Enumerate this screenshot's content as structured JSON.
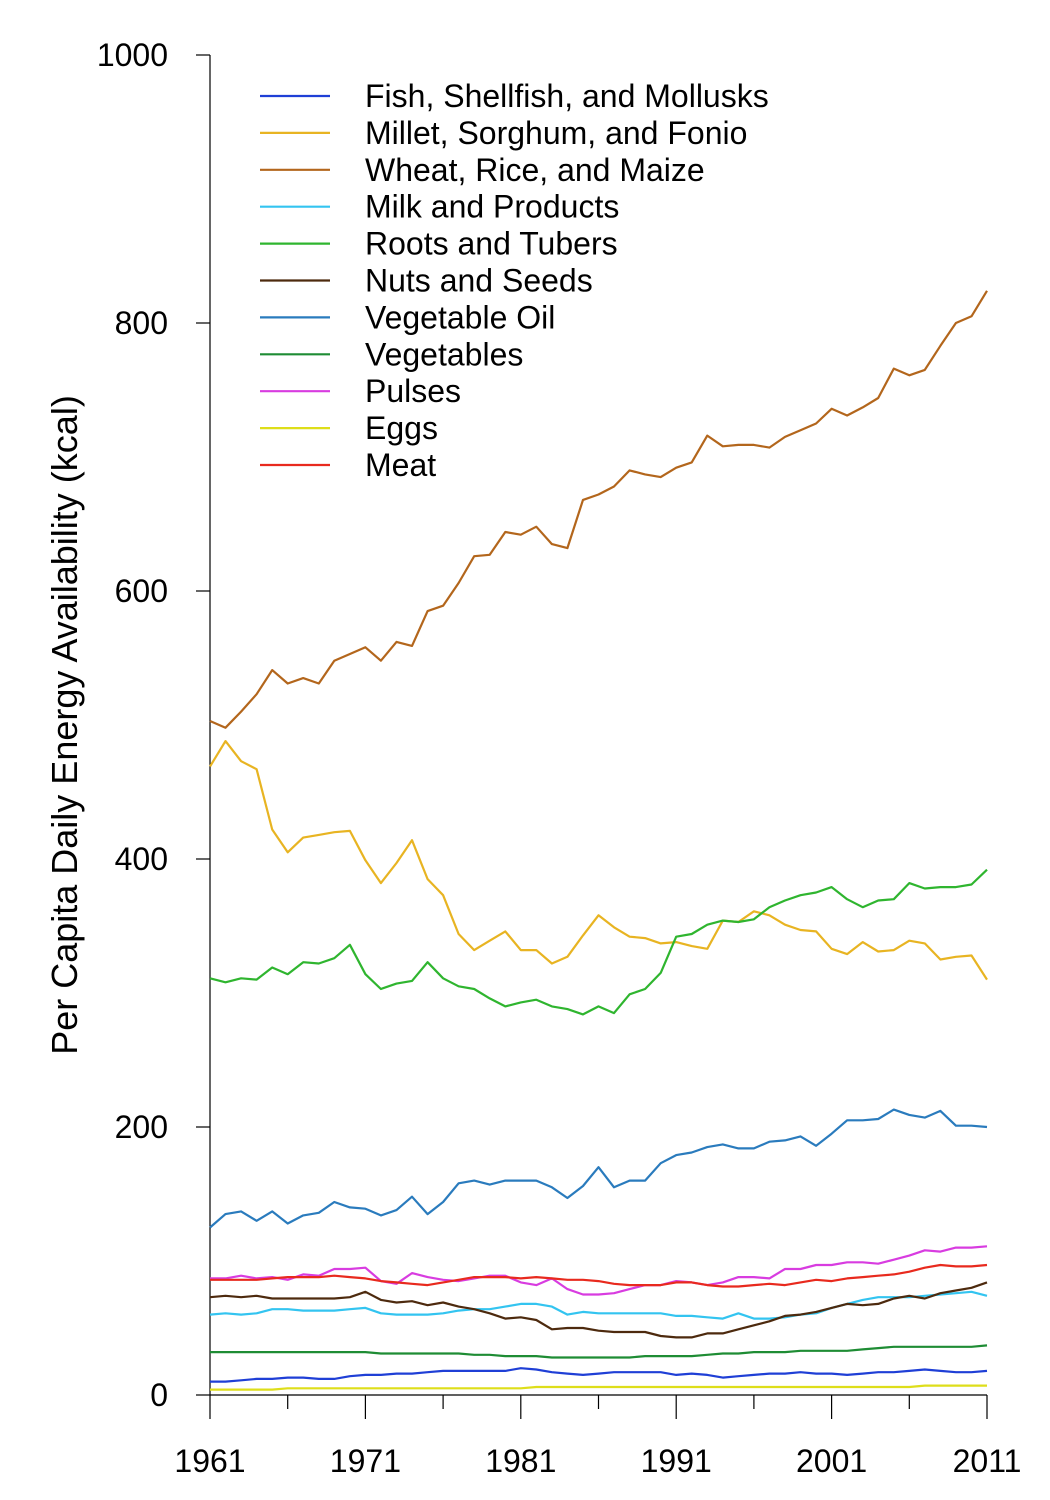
{
  "chart_data": {
    "type": "line",
    "title": "",
    "xlabel": "",
    "ylabel": "Per Capita Daily Energy Availability (kcal)",
    "xlim": [
      1961,
      2011
    ],
    "ylim": [
      0,
      1000
    ],
    "x_ticks": [
      "1961",
      "1971",
      "1981",
      "1991",
      "2001",
      "2011"
    ],
    "y_ticks": [
      "0",
      "200",
      "400",
      "600",
      "800",
      "1000"
    ],
    "grid": false,
    "legend_position": "top-left",
    "x": [
      1961,
      1962,
      1963,
      1964,
      1965,
      1966,
      1967,
      1968,
      1969,
      1970,
      1971,
      1972,
      1973,
      1974,
      1975,
      1976,
      1977,
      1978,
      1979,
      1980,
      1981,
      1982,
      1983,
      1984,
      1985,
      1986,
      1987,
      1988,
      1989,
      1990,
      1991,
      1992,
      1993,
      1994,
      1995,
      1996,
      1997,
      1998,
      1999,
      2000,
      2001,
      2002,
      2003,
      2004,
      2005,
      2006,
      2007,
      2008,
      2009,
      2010,
      2011
    ],
    "series": [
      {
        "name": "Fish, Shellfish, and Mollusks",
        "color": "#1f3fd6",
        "values": [
          10,
          10,
          11,
          12,
          12,
          13,
          13,
          12,
          12,
          14,
          15,
          15,
          16,
          16,
          17,
          18,
          18,
          18,
          18,
          18,
          20,
          19,
          17,
          16,
          15,
          16,
          17,
          17,
          17,
          17,
          15,
          16,
          15,
          13,
          14,
          15,
          16,
          16,
          17,
          16,
          16,
          15,
          16,
          17,
          17,
          18,
          19,
          18,
          17,
          17,
          18
        ]
      },
      {
        "name": "Millet, Sorghum, and Fonio",
        "color": "#e8b422",
        "values": [
          469,
          488,
          473,
          467,
          422,
          405,
          416,
          418,
          420,
          421,
          399,
          382,
          397,
          414,
          385,
          373,
          344,
          332,
          339,
          346,
          332,
          332,
          322,
          327,
          343,
          358,
          349,
          342,
          341,
          337,
          338,
          335,
          333,
          354,
          353,
          361,
          358,
          351,
          347,
          346,
          333,
          329,
          338,
          331,
          332,
          339,
          337,
          325,
          327,
          328,
          310
        ]
      },
      {
        "name": "Wheat, Rice, and Maize",
        "color": "#b3661c",
        "values": [
          503,
          498,
          510,
          523,
          541,
          531,
          535,
          531,
          548,
          553,
          558,
          548,
          562,
          559,
          585,
          589,
          606,
          626,
          627,
          644,
          642,
          648,
          635,
          632,
          668,
          672,
          678,
          690,
          687,
          685,
          692,
          696,
          716,
          708,
          709,
          709,
          707,
          715,
          720,
          725,
          736,
          731,
          737,
          744,
          766,
          761,
          765,
          783,
          800,
          805,
          824
        ]
      },
      {
        "name": "Milk and Products",
        "color": "#33c4f0",
        "values": [
          60,
          61,
          60,
          61,
          64,
          64,
          63,
          63,
          63,
          64,
          65,
          61,
          60,
          60,
          60,
          61,
          63,
          64,
          64,
          66,
          68,
          68,
          66,
          60,
          62,
          61,
          61,
          61,
          61,
          61,
          59,
          59,
          58,
          57,
          61,
          57,
          57,
          58,
          60,
          61,
          65,
          68,
          71,
          73,
          73,
          73,
          74,
          75,
          76,
          77,
          74
        ]
      },
      {
        "name": "Roots and Tubers",
        "color": "#2fb52f",
        "values": [
          311,
          308,
          311,
          310,
          319,
          314,
          323,
          322,
          326,
          336,
          314,
          303,
          307,
          309,
          323,
          311,
          305,
          303,
          296,
          290,
          293,
          295,
          290,
          288,
          284,
          290,
          285,
          299,
          303,
          315,
          342,
          344,
          351,
          354,
          353,
          355,
          364,
          369,
          373,
          375,
          379,
          370,
          364,
          369,
          370,
          382,
          378,
          379,
          379,
          381,
          392
        ]
      },
      {
        "name": "Nuts and Seeds",
        "color": "#4d2a0e",
        "values": [
          73,
          74,
          73,
          74,
          72,
          72,
          72,
          72,
          72,
          73,
          77,
          71,
          69,
          70,
          67,
          69,
          66,
          64,
          61,
          57,
          58,
          56,
          49,
          50,
          50,
          48,
          47,
          47,
          47,
          44,
          43,
          43,
          46,
          46,
          49,
          52,
          55,
          59,
          60,
          62,
          65,
          68,
          67,
          68,
          72,
          74,
          72,
          76,
          78,
          80,
          84
        ]
      },
      {
        "name": "Vegetable Oil",
        "color": "#2a7bbd",
        "values": [
          125,
          135,
          137,
          130,
          137,
          128,
          134,
          136,
          144,
          140,
          139,
          134,
          138,
          148,
          135,
          144,
          158,
          160,
          157,
          160,
          160,
          160,
          155,
          147,
          156,
          170,
          155,
          160,
          160,
          173,
          179,
          181,
          185,
          187,
          184,
          184,
          189,
          190,
          193,
          186,
          195,
          205,
          205,
          206,
          213,
          209,
          207,
          212,
          201,
          201,
          200
        ]
      },
      {
        "name": "Vegetables",
        "color": "#1e8c34",
        "values": [
          32,
          32,
          32,
          32,
          32,
          32,
          32,
          32,
          32,
          32,
          32,
          31,
          31,
          31,
          31,
          31,
          31,
          30,
          30,
          29,
          29,
          29,
          28,
          28,
          28,
          28,
          28,
          28,
          29,
          29,
          29,
          29,
          30,
          31,
          31,
          32,
          32,
          32,
          33,
          33,
          33,
          33,
          34,
          35,
          36,
          36,
          36,
          36,
          36,
          36,
          37
        ]
      },
      {
        "name": "Pulses",
        "color": "#d83ce0",
        "values": [
          87,
          87,
          89,
          87,
          88,
          86,
          90,
          89,
          94,
          94,
          95,
          85,
          83,
          91,
          88,
          86,
          85,
          87,
          89,
          89,
          84,
          82,
          87,
          79,
          75,
          75,
          76,
          79,
          82,
          82,
          85,
          84,
          82,
          84,
          88,
          88,
          87,
          94,
          94,
          97,
          97,
          99,
          99,
          98,
          101,
          104,
          108,
          107,
          110,
          110,
          111
        ]
      },
      {
        "name": "Eggs",
        "color": "#dede1a",
        "values": [
          4,
          4,
          4,
          4,
          4,
          5,
          5,
          5,
          5,
          5,
          5,
          5,
          5,
          5,
          5,
          5,
          5,
          5,
          5,
          5,
          5,
          6,
          6,
          6,
          6,
          6,
          6,
          6,
          6,
          6,
          6,
          6,
          6,
          6,
          6,
          6,
          6,
          6,
          6,
          6,
          6,
          6,
          6,
          6,
          6,
          6,
          7,
          7,
          7,
          7,
          7
        ]
      },
      {
        "name": "Meat",
        "color": "#e82a1e",
        "values": [
          86,
          86,
          86,
          86,
          87,
          88,
          88,
          88,
          89,
          88,
          87,
          85,
          84,
          83,
          82,
          84,
          86,
          88,
          88,
          88,
          87,
          88,
          87,
          86,
          86,
          85,
          83,
          82,
          82,
          82,
          84,
          84,
          82,
          81,
          81,
          82,
          83,
          82,
          84,
          86,
          85,
          87,
          88,
          89,
          90,
          92,
          95,
          97,
          96,
          96,
          97
        ]
      }
    ]
  }
}
